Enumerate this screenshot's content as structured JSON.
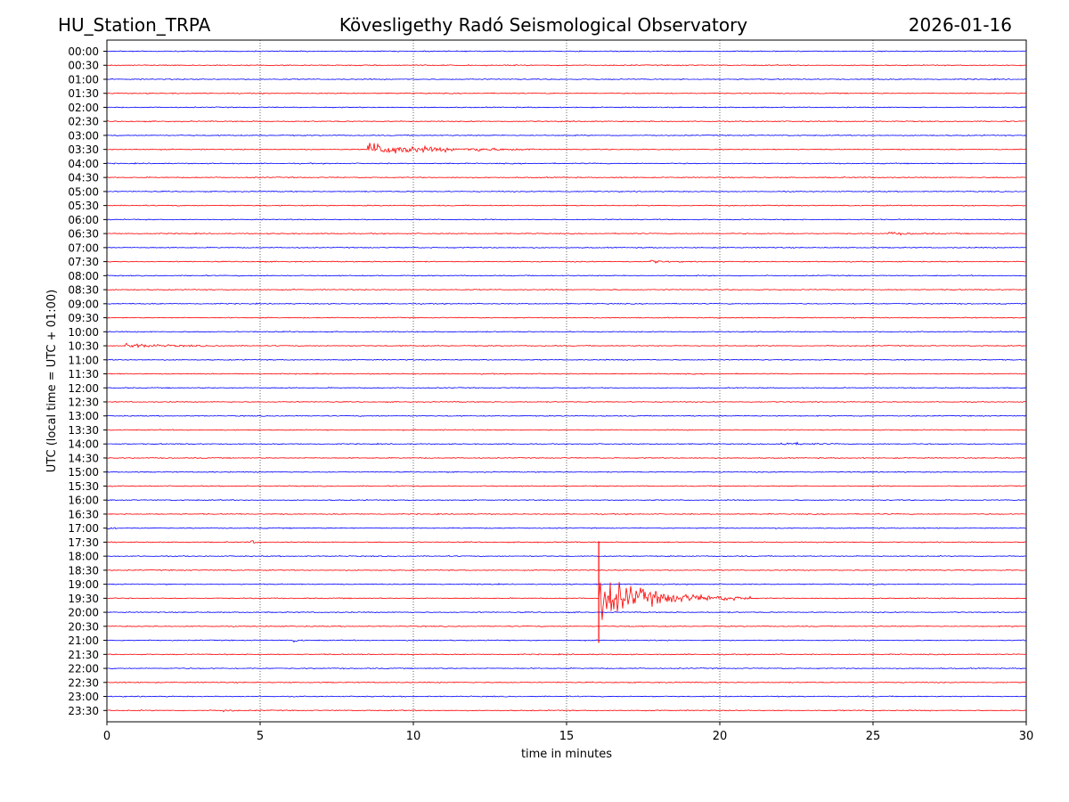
{
  "chart_data": {
    "type": "line",
    "title_left": "HU_Station_TRPA",
    "title_center": "Kövesligethy Radó Seismological Observatory",
    "title_right": "2026-01-16",
    "xlabel": "time in minutes",
    "ylabel": "UTC (local time = UTC + 01:00)",
    "xlim": [
      0,
      30
    ],
    "xticks": [
      0,
      5,
      10,
      15,
      20,
      25,
      30
    ],
    "vertical_grid": "dotted",
    "row_labels": [
      "00:00",
      "00:30",
      "01:00",
      "01:30",
      "02:00",
      "02:30",
      "03:00",
      "03:30",
      "04:00",
      "04:30",
      "05:00",
      "05:30",
      "06:00",
      "06:30",
      "07:00",
      "07:30",
      "08:00",
      "08:30",
      "09:00",
      "09:30",
      "10:00",
      "10:30",
      "11:00",
      "11:30",
      "12:00",
      "12:30",
      "13:00",
      "13:30",
      "14:00",
      "14:30",
      "15:00",
      "15:30",
      "16:00",
      "16:30",
      "17:00",
      "17:30",
      "18:00",
      "18:30",
      "19:00",
      "19:30",
      "20:00",
      "20:30",
      "21:00",
      "21:30",
      "22:00",
      "22:30",
      "23:00",
      "23:30"
    ],
    "trace_colors": [
      "#0000ff",
      "#ff0000"
    ],
    "events": [
      {
        "row": "03:30",
        "start_min": 8.5,
        "end_min": 14.0,
        "peak_amp": 2.2,
        "label": "event"
      },
      {
        "row": "03:30",
        "start_min": 12.1,
        "end_min": 12.6,
        "peak_amp": 1.0,
        "label": "event"
      },
      {
        "row": "06:30",
        "start_min": 25.5,
        "end_min": 27.8,
        "peak_amp": 0.4,
        "label": "event"
      },
      {
        "row": "07:30",
        "start_min": 17.7,
        "end_min": 18.8,
        "peak_amp": 0.6,
        "label": "event"
      },
      {
        "row": "10:30",
        "start_min": 0.6,
        "end_min": 4.2,
        "peak_amp": 0.7,
        "label": "event"
      },
      {
        "row": "14:00",
        "start_min": 22.0,
        "end_min": 24.3,
        "peak_amp": 0.5,
        "label": "event"
      },
      {
        "row": "17:00",
        "start_min": 0.0,
        "end_min": 0.6,
        "peak_amp": 0.5,
        "label": "event"
      },
      {
        "row": "17:30",
        "start_min": 4.7,
        "end_min": 5.2,
        "peak_amp": 0.6,
        "label": "event"
      },
      {
        "row": "19:30",
        "start_min": 16.05,
        "end_min": 21.0,
        "peak_amp": 7.0,
        "label": "event"
      },
      {
        "row": "21:00",
        "start_min": 6.1,
        "end_min": 6.5,
        "peak_amp": 0.7,
        "label": "event"
      },
      {
        "row": "23:30",
        "start_min": 3.8,
        "end_min": 4.3,
        "peak_amp": 0.7,
        "label": "event"
      }
    ]
  }
}
